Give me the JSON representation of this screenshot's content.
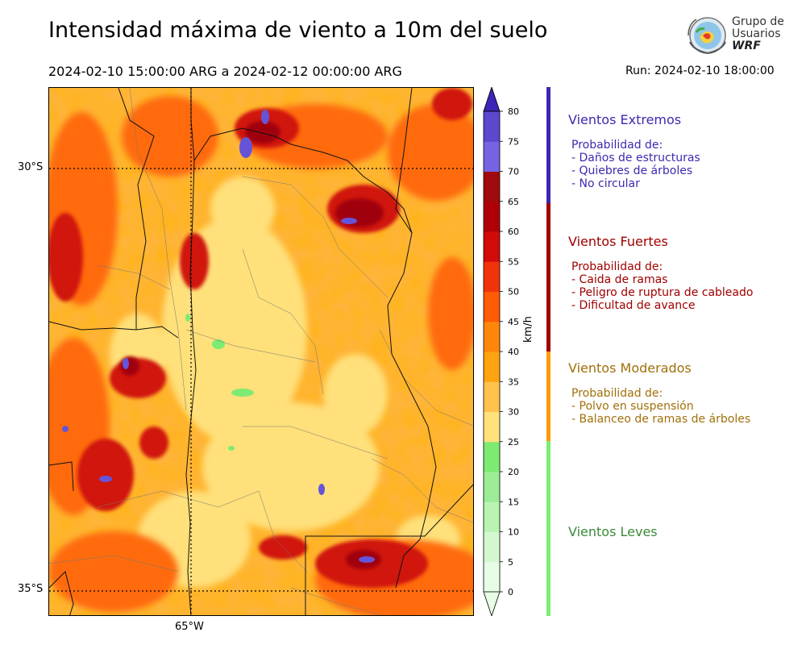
{
  "title": "Intensidad máxima de viento a 10m del suelo",
  "period": "2024-02-10 15:00:00 ARG  a  2024-02-12 00:00:00 ARG",
  "run": "Run: 2024-02-10 18:00:00",
  "logo": {
    "line1": "Grupo de",
    "line2": "Usuarios",
    "line3": "WRF"
  },
  "map": {
    "lat_labels": [
      "30°S",
      "35°S"
    ],
    "lon_labels": [
      "65°W"
    ]
  },
  "colorbar": {
    "unit": "km/h",
    "ticks": [
      "0",
      "5",
      "10",
      "15",
      "20",
      "25",
      "30",
      "35",
      "40",
      "45",
      "50",
      "55",
      "60",
      "65",
      "70",
      "75",
      "80"
    ],
    "colors": [
      "#e8fde6",
      "#d3f8cf",
      "#baf4b2",
      "#9ded96",
      "#7deb72",
      "#ffe27c",
      "#ffc24b",
      "#ffa30f",
      "#ff860a",
      "#ff5a04",
      "#f1330a",
      "#d30a0a",
      "#b00007",
      "#9f0a0d",
      "#7464e3",
      "#5a48cf",
      "#4d35bf",
      "#3d25b8"
    ]
  },
  "categories": [
    {
      "title": "Vientos Extremos",
      "color": "#3a2ab0",
      "bar_color": "#3a2ab0",
      "lines": [
        "Probabilidad de:",
        "- Daños de estructuras",
        "- Quiebres de árboles",
        "- No circular"
      ]
    },
    {
      "title": "Vientos Fuertes",
      "color": "#a00000",
      "bar_color": "#a00000",
      "lines": [
        "Probabilidad de:",
        "- Caida de ramas",
        "- Peligro de ruptura de cableado",
        "- Dificultad de avance"
      ]
    },
    {
      "title": "Vientos Moderados",
      "color": "#a0700a",
      "bar_color": "#ff9a00",
      "lines": [
        "Probabilidad de:",
        "- Polvo en suspensión",
        "- Balanceo de ramas de árboles"
      ]
    },
    {
      "title": "Vientos Leves",
      "color": "#3a8a3a",
      "bar_color": "#7aef72",
      "lines": []
    }
  ]
}
